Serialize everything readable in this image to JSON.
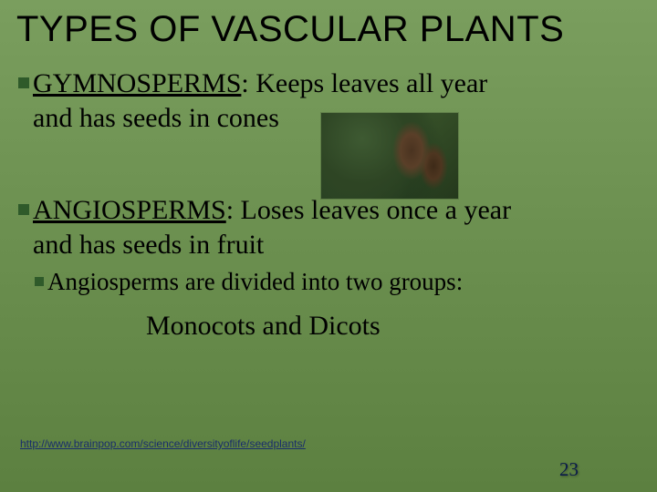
{
  "title": "TYPES OF VASCULAR PLANTS",
  "items": [
    {
      "term": "GYMNOSPERMS",
      "rest_line1": ":   Keeps leaves all year",
      "line2": "and has seeds in cones"
    },
    {
      "term": "ANGIOSPERMS",
      "rest_line1": ": Loses leaves once a year",
      "line2": "and has seeds in fruit"
    }
  ],
  "subitem": "Angiosperms are divided into two groups:",
  "mono_dico": "Monocots and Dicots",
  "link_text": "http://www.brainpop.com/science/diversityoflife/seedplants/",
  "page_number": "23",
  "colors": {
    "bullet": "#2f5a2a",
    "link": "#1a2e6b",
    "pagenum": "#0a1a4a"
  },
  "photo": {
    "alt": "pine-cones-photo"
  }
}
